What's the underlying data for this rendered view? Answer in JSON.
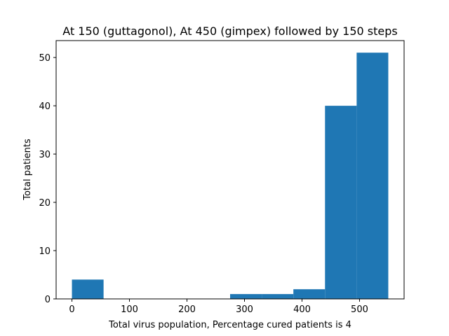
{
  "chart_data": {
    "type": "bar",
    "title": "At 150 (guttagonol), At 450 (gimpex) followed by 150 steps",
    "xlabel": "Total virus population, Percentage cured patients is 4",
    "ylabel": "Total patients",
    "xlim": [
      -27.5,
      577.5
    ],
    "ylim": [
      0,
      53.5
    ],
    "x_ticks": [
      0,
      100,
      200,
      300,
      400,
      500
    ],
    "y_ticks": [
      0,
      10,
      20,
      30,
      40,
      50
    ],
    "bin_edges": [
      0,
      55,
      110,
      165,
      220,
      275,
      330,
      385,
      440,
      495,
      550
    ],
    "values": [
      4,
      0,
      0,
      0,
      0,
      1,
      1,
      2,
      40,
      51
    ],
    "bar_color": "#1f77b4",
    "grid": false,
    "legend": "none"
  }
}
